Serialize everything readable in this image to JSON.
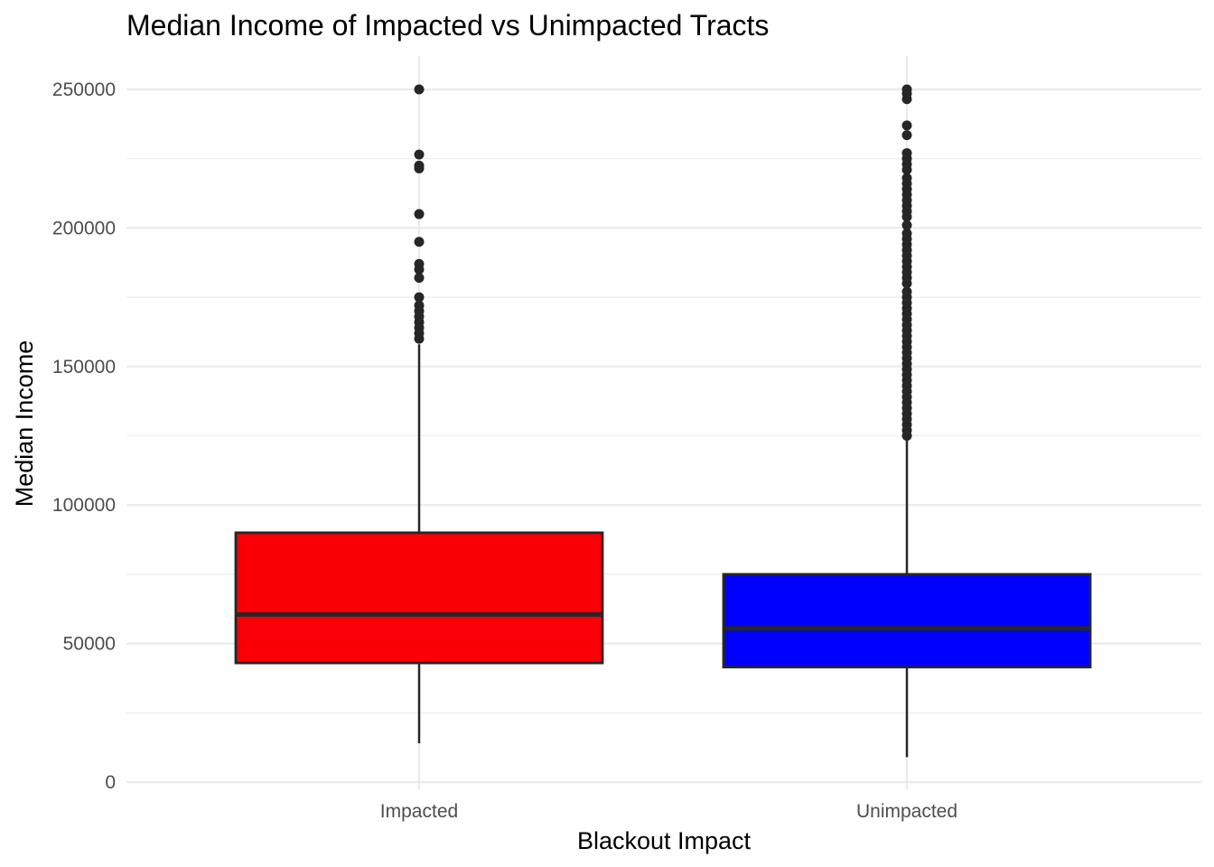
{
  "chart_data": {
    "type": "boxplot",
    "title": "Median Income of Impacted vs Unimpacted Tracts",
    "xlabel": "Blackout Impact",
    "ylabel": "Median Income",
    "ylim": [
      0,
      260000
    ],
    "y_ticks": [
      0,
      50000,
      100000,
      150000,
      200000,
      250000
    ],
    "y_tick_labels": [
      "0",
      "50000",
      "100000",
      "150000",
      "200000",
      "250000"
    ],
    "grid": true,
    "legend": "none",
    "categories": [
      "Impacted",
      "Unimpacted"
    ],
    "boxes": [
      {
        "category": "Impacted",
        "color": "#fa0006",
        "whisker_low": 14000,
        "q1": 43000,
        "median": 60500,
        "q3": 90000,
        "whisker_high": 158000,
        "outliers": [
          160000,
          162000,
          164000,
          166000,
          168000,
          170000,
          172000,
          175000,
          182000,
          185000,
          187000,
          195000,
          205000,
          221500,
          222500,
          226500,
          250000
        ]
      },
      {
        "category": "Unimpacted",
        "color": "#0000ff",
        "whisker_low": 9000,
        "q1": 41500,
        "median": 55500,
        "q3": 75000,
        "whisker_high": 124000,
        "outliers": [
          125000,
          127000,
          129000,
          131000,
          133000,
          135000,
          137000,
          139000,
          141000,
          143000,
          145000,
          147000,
          149000,
          151000,
          153000,
          155000,
          157000,
          159000,
          161000,
          163000,
          165000,
          167000,
          169000,
          171000,
          173000,
          175000,
          177000,
          180000,
          182000,
          184000,
          186000,
          188000,
          190000,
          192000,
          194000,
          196000,
          198000,
          201000,
          204000,
          206000,
          208000,
          210000,
          212000,
          214000,
          216000,
          218000,
          221000,
          223000,
          225000,
          227000,
          233500,
          237000,
          246500,
          248500,
          250000
        ]
      }
    ]
  }
}
